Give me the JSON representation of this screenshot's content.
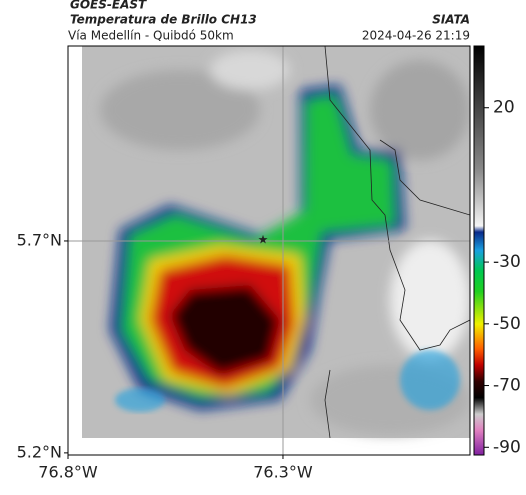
{
  "header": {
    "source": "GOES-EAST",
    "title": "Temperatura de Brillo CH13",
    "brand": "SIATA",
    "subtitle": "Vía Medellín - Quibdó 50km",
    "timestamp": "2024-04-26 21:19"
  },
  "map": {
    "xlim": [
      -76.8,
      -75.865
    ],
    "ylim": [
      5.195,
      6.16
    ],
    "xticks": [
      {
        "value": -76.8,
        "label": "76.8°W"
      },
      {
        "value": -76.3,
        "label": "76.3°W"
      }
    ],
    "yticks": [
      {
        "value": 5.7,
        "label": "5.7°N"
      },
      {
        "value": 5.2,
        "label": "5.2°N"
      }
    ]
  },
  "colorbar": {
    "lim": [
      40,
      -92.5
    ],
    "ticks": [
      20,
      -30,
      -50,
      -70,
      -90
    ]
  }
}
